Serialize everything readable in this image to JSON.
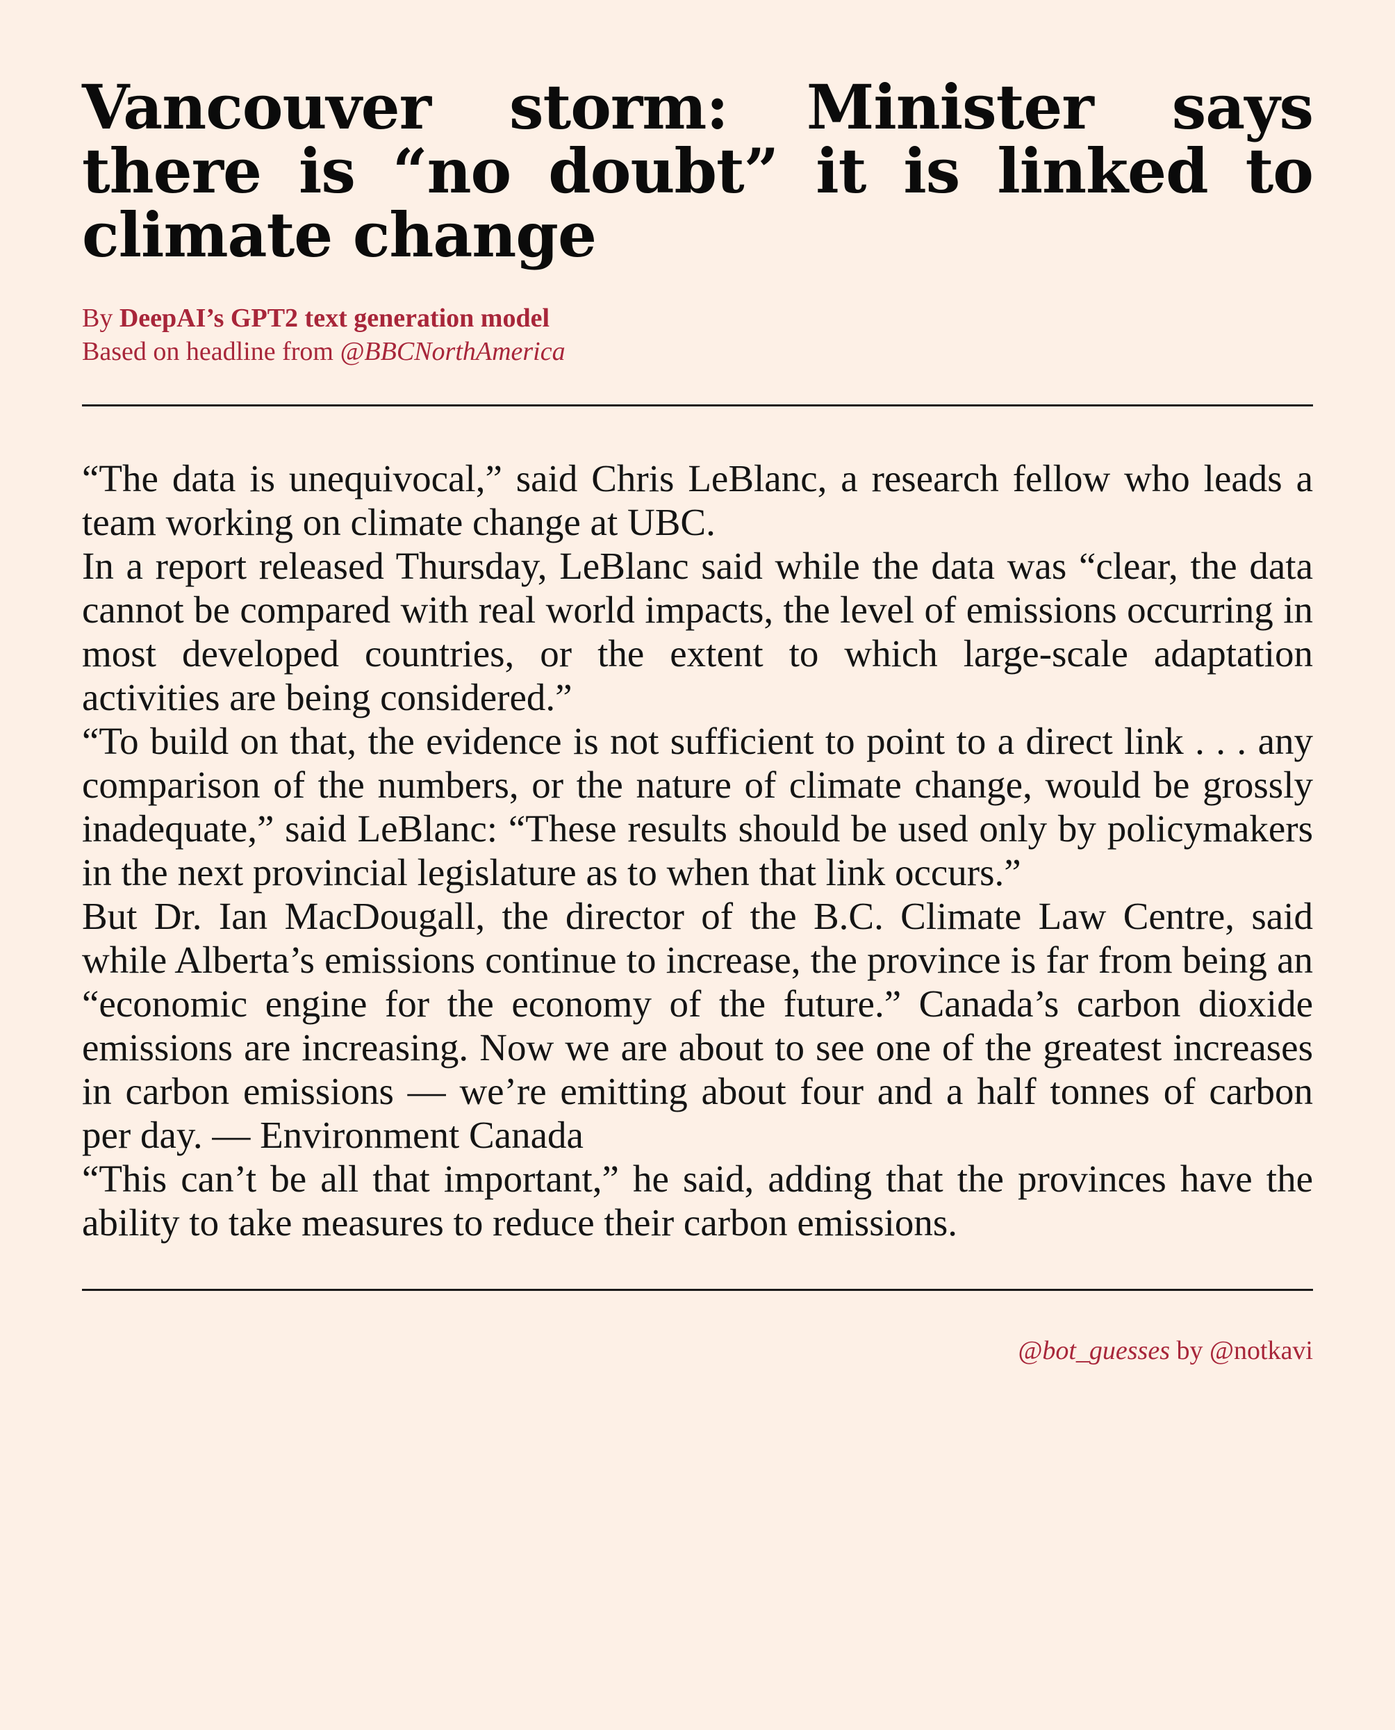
{
  "headline": "Vancouver storm: Minister says there is “no doubt” it is linked to climate change",
  "byline": {
    "prefix": "By ",
    "author": "DeepAI’s GPT2 text generation model",
    "based_on": "Based on headline from ",
    "source_handle": "@BBCNorthAmerica"
  },
  "article": {
    "paragraphs": [
      "“The data is unequivocal,” said Chris LeBlanc, a research fellow who leads a team working on climate change at UBC.",
      "In a report released Thursday, LeBlanc said while the data was “clear, the data cannot be compared with real world impacts, the level of emissions occurring in most developed countries, or the extent to which large-scale adaptation activities are being considered.”",
      "“To build on that, the evidence is not sufficient to point to a direct link . . .   any comparison of the numbers, or the nature of climate change, would be grossly inadequate,” said LeBlanc: “These results should be used only by policymakers in the next provincial legisla­ture as to when that link occurs.”",
      "But Dr. Ian MacDougall, the director of the B.C. Climate Law Centre, said while Alberta’s emissions continue to increase, the province is far from being an “economic engine for the economy of the future.” Canada’s carbon dioxide emissions are increasing. Now we are about to see one of the greatest increases in carbon emissions — we’re emitting about four and a half tonnes of carbon per day. — Environ­ment Canada",
      "“This can’t be all that important,” he said, adding that the provinces have the ability to take measures to reduce their carbon emissions."
    ]
  },
  "footer": {
    "bot_handle": "@bot_guesses",
    "by_text": " by ",
    "author_handle": "@notkavi"
  },
  "colors": {
    "background": "#fdf0e6",
    "accent": "#a8263a",
    "text": "#141414"
  }
}
